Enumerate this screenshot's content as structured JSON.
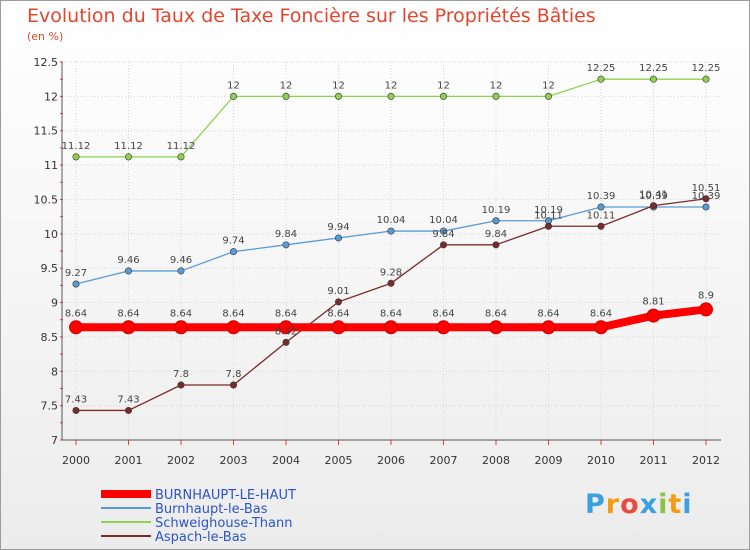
{
  "header": {
    "title": "Evolution du Taux de Taxe Foncière sur les Propriétés Bâties",
    "unit": "(en %)"
  },
  "chart_data": {
    "type": "line",
    "x": [
      "2000",
      "2001",
      "2002",
      "2003",
      "2004",
      "2005",
      "2006",
      "2007",
      "2008",
      "2009",
      "2010",
      "2011",
      "2012"
    ],
    "ylim": [
      7,
      12.5
    ],
    "yticks": [
      "7",
      "7.5",
      "8",
      "8.5",
      "9",
      "9.5",
      "10",
      "10.5",
      "11",
      "11.5",
      "12",
      "12.5"
    ],
    "grid": true,
    "legend_position": "bottom-left",
    "series": [
      {
        "name": "BURNHAUPT-LE-HAUT",
        "color": "#ff0000",
        "values": [
          8.64,
          8.64,
          8.64,
          8.64,
          8.64,
          8.64,
          8.64,
          8.64,
          8.64,
          8.64,
          8.64,
          8.81,
          8.9
        ],
        "labels": [
          "8.64",
          "8.64",
          "8.64",
          "8.64",
          "8.64",
          "8.64",
          "8.64",
          "8.64",
          "8.64",
          "8.64",
          "8.64",
          "8.81",
          "8.9"
        ]
      },
      {
        "name": "Burnhaupt-le-Bas",
        "color": "#5b9bd5",
        "values": [
          9.27,
          9.46,
          9.46,
          9.74,
          9.84,
          9.94,
          10.04,
          10.04,
          10.19,
          10.19,
          10.39,
          10.39,
          10.39
        ],
        "labels": [
          "9.27",
          "9.46",
          "9.46",
          "9.74",
          "9.84",
          "9.94",
          "10.04",
          "10.04",
          "10.19",
          "10.19",
          "10.39",
          "10.39",
          "10.39"
        ]
      },
      {
        "name": "Schweighouse-Thann",
        "color": "#8fd14f",
        "values": [
          11.12,
          11.12,
          11.12,
          12,
          12,
          12,
          12,
          12,
          12,
          12,
          12.25,
          12.25,
          12.25
        ],
        "labels": [
          "11.12",
          "11.12",
          "11.12",
          "12",
          "12",
          "12",
          "12",
          "12",
          "12",
          "12",
          "12.25",
          "12.25",
          "12.25"
        ]
      },
      {
        "name": "Aspach-le-Bas",
        "color": "#7a2b2b",
        "values": [
          7.43,
          7.43,
          7.8,
          7.8,
          8.42,
          9.01,
          9.28,
          9.84,
          9.84,
          10.11,
          10.11,
          10.41,
          10.51
        ],
        "labels": [
          "7.43",
          "7.43",
          "7.8",
          "7.8",
          "8.42",
          "9.01",
          "9.28",
          "9.84",
          "9.84",
          "10.11",
          "10.11",
          "10.41",
          "10.51"
        ]
      }
    ]
  },
  "logo": {
    "letters": [
      "P",
      "r",
      "o",
      "x",
      "i",
      "t",
      "i"
    ],
    "colors": [
      "#3aa0e0",
      "#f39c12",
      "#e74c3c",
      "#3aa0e0",
      "#8bc34a",
      "#f39c12",
      "#3aa0e0"
    ]
  }
}
